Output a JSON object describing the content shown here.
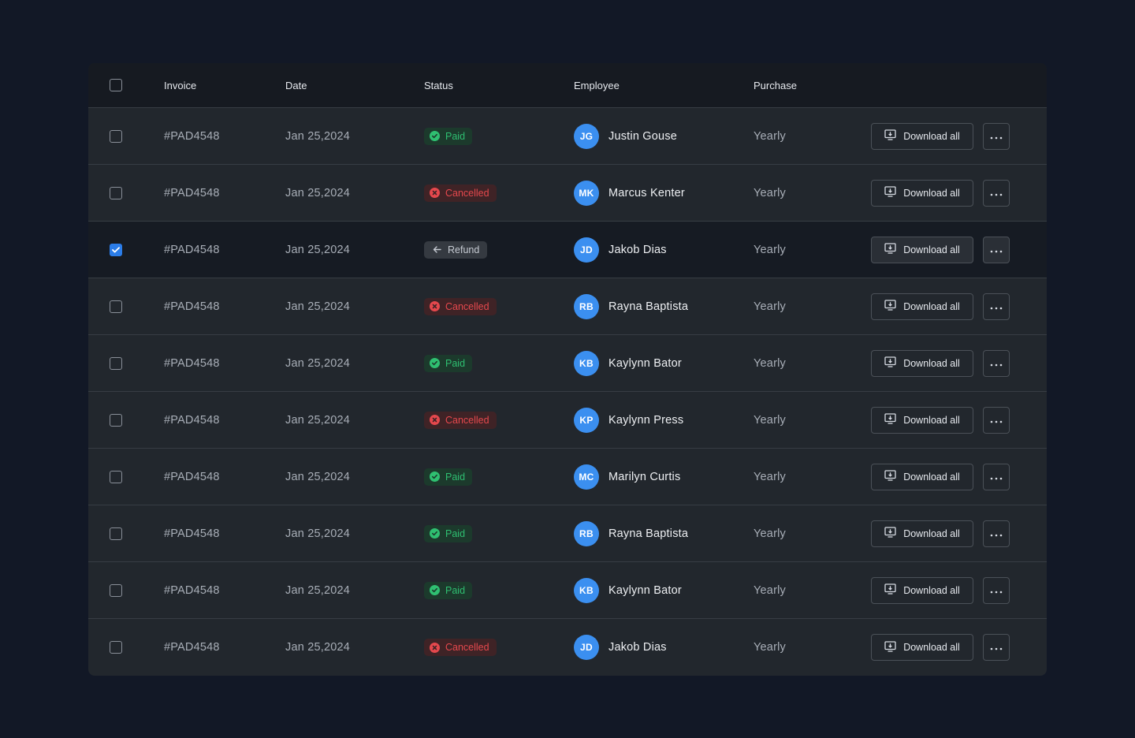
{
  "table": {
    "headers": {
      "invoice": "Invoice",
      "date": "Date",
      "status": "Status",
      "employee": "Employee",
      "purchase": "Purchase"
    },
    "rows": [
      {
        "invoice": "#PAD4548",
        "date": "Jan 25,2024",
        "status": "Paid",
        "status_type": "paid",
        "initials": "JG",
        "employee": "Justin Gouse",
        "purchase": "Yearly",
        "action": "Download all",
        "checked": false
      },
      {
        "invoice": "#PAD4548",
        "date": "Jan 25,2024",
        "status": "Cancelled",
        "status_type": "cancelled",
        "initials": "MK",
        "employee": "Marcus Kenter",
        "purchase": "Yearly",
        "action": "Download all",
        "checked": false
      },
      {
        "invoice": "#PAD4548",
        "date": "Jan 25,2024",
        "status": "Refund",
        "status_type": "refund",
        "initials": "JD",
        "employee": "Jakob Dias",
        "purchase": "Yearly",
        "action": "Download all",
        "checked": true
      },
      {
        "invoice": "#PAD4548",
        "date": "Jan 25,2024",
        "status": "Cancelled",
        "status_type": "cancelled",
        "initials": "RB",
        "employee": "Rayna Baptista",
        "purchase": "Yearly",
        "action": "Download all",
        "checked": false
      },
      {
        "invoice": "#PAD4548",
        "date": "Jan 25,2024",
        "status": "Paid",
        "status_type": "paid",
        "initials": "KB",
        "employee": "Kaylynn Bator",
        "purchase": "Yearly",
        "action": "Download all",
        "checked": false
      },
      {
        "invoice": "#PAD4548",
        "date": "Jan 25,2024",
        "status": "Cancelled",
        "status_type": "cancelled",
        "initials": "KP",
        "employee": "Kaylynn Press",
        "purchase": "Yearly",
        "action": "Download all",
        "checked": false
      },
      {
        "invoice": "#PAD4548",
        "date": "Jan 25,2024",
        "status": "Paid",
        "status_type": "paid",
        "initials": "MC",
        "employee": "Marilyn Curtis",
        "purchase": "Yearly",
        "action": "Download all",
        "checked": false
      },
      {
        "invoice": "#PAD4548",
        "date": "Jan 25,2024",
        "status": "Paid",
        "status_type": "paid",
        "initials": "RB",
        "employee": "Rayna Baptista",
        "purchase": "Yearly",
        "action": "Download all",
        "checked": false
      },
      {
        "invoice": "#PAD4548",
        "date": "Jan 25,2024",
        "status": "Paid",
        "status_type": "paid",
        "initials": "KB",
        "employee": "Kaylynn Bator",
        "purchase": "Yearly",
        "action": "Download all",
        "checked": false
      },
      {
        "invoice": "#PAD4548",
        "date": "Jan 25,2024",
        "status": "Cancelled",
        "status_type": "cancelled",
        "initials": "JD",
        "employee": "Jakob Dias",
        "purchase": "Yearly",
        "action": "Download all",
        "checked": false
      }
    ]
  },
  "colors": {
    "page_bg": "#121826",
    "table_bg": "#22272d",
    "accent": "#3b8ff0",
    "paid": "#2fbf71",
    "cancelled": "#e5484d"
  },
  "icons": {
    "paid": "check-circle-icon",
    "cancelled": "x-circle-icon",
    "refund": "arrow-left-icon",
    "download": "download-icon",
    "more": "more-horizontal-icon"
  }
}
